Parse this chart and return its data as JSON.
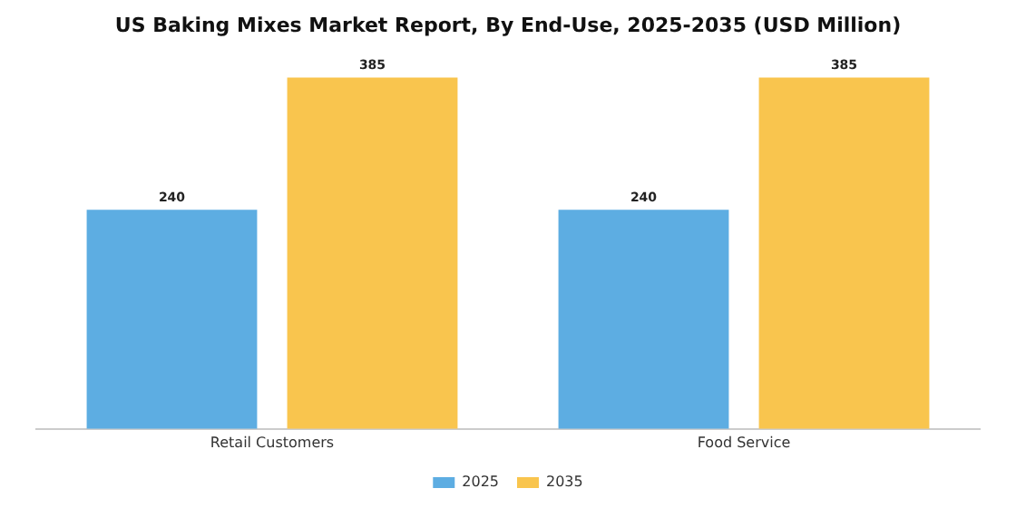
{
  "chart_data": {
    "type": "bar",
    "title": "US Baking Mixes Market Report, By End-Use, 2025-2035 (USD Million)",
    "categories": [
      "Retail Customers",
      "Food Service"
    ],
    "series": [
      {
        "name": "2025",
        "color": "#5dade2",
        "values": [
          240,
          240
        ]
      },
      {
        "name": "2035",
        "color": "#f9c54e",
        "values": [
          385,
          385
        ]
      }
    ],
    "data_labels": true,
    "legend": "bottom",
    "grid": false,
    "tick_labels": "x"
  }
}
